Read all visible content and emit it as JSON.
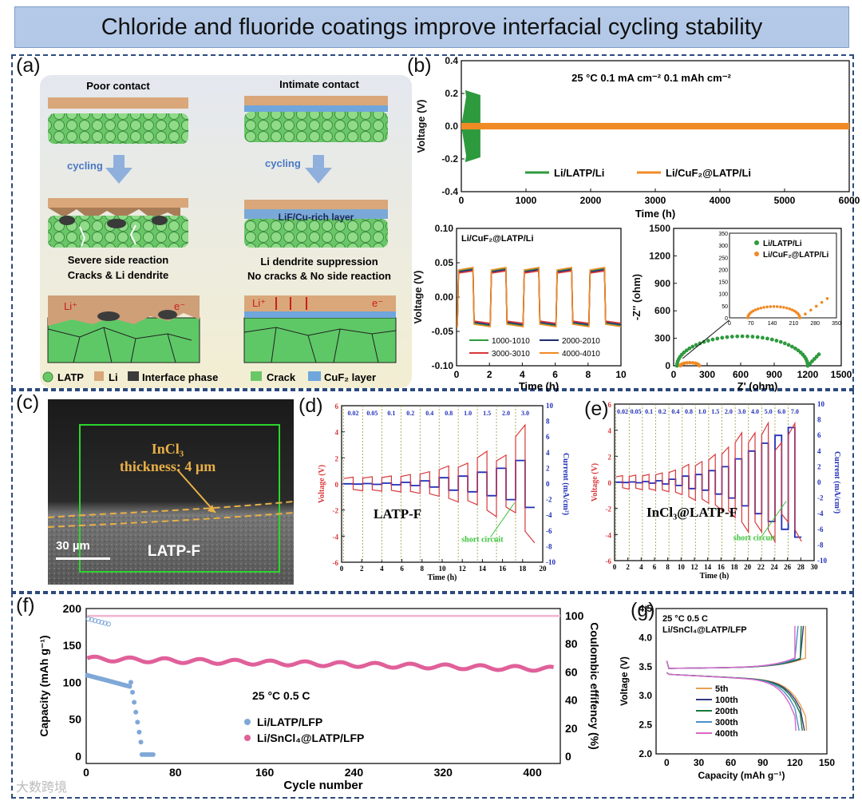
{
  "title": "Chloride and fluoride coatings improve interfacial cycling stability",
  "labels": {
    "a": "(a)",
    "b": "(b)",
    "c": "(c)",
    "d": "(d)",
    "e": "(e)",
    "f": "(f)",
    "g": "(g)"
  },
  "panel_a": {
    "poor": "Poor contact",
    "intimate": "Intimate contact",
    "cycling": "cycling",
    "lif_layer": "LiF/Cu-rich layer",
    "left_caption1": "Severe side reaction",
    "left_caption2": "Cracks & Li dendrite",
    "right_caption1": "Li dendrite suppression",
    "right_caption2": "No cracks & No side reaction",
    "li_plus": "Li⁺",
    "e_minus": "e⁻",
    "legend": [
      "LATP",
      "Li",
      "Interface phase",
      "Crack",
      "CuF₂ layer"
    ]
  },
  "panel_c": {
    "coating": "InCl₃",
    "thickness": "thickness:  4 µm",
    "scale": "30 µm",
    "sample": "LATP-F"
  },
  "colors": {
    "green": "#2e9a3e",
    "orange": "#f08a24",
    "red": "#d9383a",
    "blue": "#1f2fb8",
    "pink": "#e0609a",
    "lightblue": "#7fa8d8",
    "pinkfade": "#f2b7d2"
  },
  "chart_data": [
    {
      "id": "b-top",
      "type": "line",
      "title": "25 °C 0.1 mA cm⁻² 0.1 mAh cm⁻²",
      "xlabel": "Time (h)",
      "ylabel": "Voltage (V)",
      "xlim": [
        0,
        6100
      ],
      "ylim": [
        -0.4,
        0.4
      ],
      "xticks": [
        "0",
        "1000",
        "2000",
        "3000",
        "4000",
        "5000",
        "6000"
      ],
      "yticks": [
        "-0.4",
        "-0.2",
        "0.0",
        "0.2",
        "0.4"
      ],
      "series": [
        {
          "name": "Li/LATP/Li",
          "x_end": 300,
          "amplitude": 0.22
        },
        {
          "name": "Li/CuF₂@LATP/Li",
          "x_end": 6100,
          "amplitude": 0.02
        }
      ]
    },
    {
      "id": "b-bl",
      "type": "line",
      "title": "Li/CuF₂@LATP/Li",
      "xlabel": "Time (h)",
      "ylabel": "Voltage (V)",
      "xlim": [
        0,
        10
      ],
      "ylim": [
        -0.1,
        0.1
      ],
      "xticks": [
        "0",
        "2",
        "4",
        "6",
        "8",
        "10"
      ],
      "yticks": [
        "-0.10",
        "-0.05",
        "0.00",
        "0.05",
        "0.10"
      ],
      "series": [
        {
          "name": "1000-1010",
          "amplitude": 0.042
        },
        {
          "name": "2000-2010",
          "amplitude": 0.04
        },
        {
          "name": "3000-3010",
          "amplitude": 0.038
        },
        {
          "name": "4000-4010",
          "amplitude": 0.043
        }
      ]
    },
    {
      "id": "b-br",
      "type": "scatter",
      "xlabel": "Z' (ohm)",
      "ylabel": "-Z'' (ohm)",
      "xlim": [
        0,
        1500
      ],
      "ylim": [
        0,
        1500
      ],
      "xticks": [
        "0",
        "300",
        "600",
        "900",
        "1200",
        "1500"
      ],
      "yticks": [
        "0",
        "300",
        "600",
        "900",
        "1200",
        "1500"
      ],
      "inset_xticks": [
        "0",
        "70",
        "140",
        "210",
        "280",
        "350"
      ],
      "inset_yticks": [
        "0",
        "50",
        "100",
        "150",
        "200",
        "250",
        "300",
        "350"
      ],
      "series": [
        {
          "name": "Li/LATP/Li",
          "semicircle": [
            30,
            1200
          ]
        },
        {
          "name": "Li/CuF₂@LATP/Li",
          "semicircle": [
            60,
            230
          ]
        }
      ]
    },
    {
      "id": "d",
      "type": "line",
      "sample": "LATP-F",
      "xlabel": "Time (h)",
      "ylabel": "Voltage (V)",
      "ylabel2": "Current (mA/cm²)",
      "xlim": [
        0,
        20
      ],
      "ylim": [
        -6,
        6
      ],
      "y2lim": [
        -10,
        10
      ],
      "xticks": [
        "0",
        "2",
        "4",
        "6",
        "8",
        "10",
        "12",
        "14",
        "16",
        "18",
        "20"
      ],
      "yticks": [
        "-6",
        "-4",
        "-2",
        "0",
        "2",
        "4",
        "6"
      ],
      "y2ticks": [
        "-10",
        "-8",
        "-6",
        "-4",
        "-2",
        "0",
        "2",
        "4",
        "6",
        "8",
        "10"
      ],
      "current_steps": [
        "0.02",
        "0.05",
        "0.1",
        "0.2",
        "0.4",
        "0.8",
        "1.0",
        "1.5",
        "2.0",
        "3.0"
      ],
      "annotation": "short circuit"
    },
    {
      "id": "e",
      "type": "line",
      "sample": "InCl₃@LATP-F",
      "xlabel": "Time (h)",
      "ylabel": "Voltage (V)",
      "ylabel2": "Current (mA/cm²)",
      "xlim": [
        0,
        30
      ],
      "ylim": [
        -6,
        6
      ],
      "y2lim": [
        -10,
        10
      ],
      "xticks": [
        "0",
        "2",
        "4",
        "6",
        "8",
        "10",
        "12",
        "14",
        "16",
        "18",
        "20",
        "22",
        "24",
        "26",
        "28",
        "30"
      ],
      "yticks": [
        "-6",
        "-4",
        "-2",
        "0",
        "2",
        "4",
        "6"
      ],
      "y2ticks": [
        "-10",
        "-8",
        "-6",
        "-4",
        "-2",
        "0",
        "2",
        "4",
        "6",
        "8",
        "10"
      ],
      "current_steps": [
        "0.02",
        "0.05",
        "0.1",
        "0.2",
        "0.4",
        "0.8",
        "1.0",
        "1.5",
        "2.0",
        "3.0",
        "4.0",
        "5.0",
        "6.0",
        "7.0"
      ],
      "annotation": "short circuit"
    },
    {
      "id": "f",
      "type": "scatter",
      "title": "25 °C 0.5 C",
      "xlabel": "Cycle number",
      "ylabel": "Capacity (mAh g⁻¹)",
      "ylabel2": "Coulombic effifency (%)",
      "xlim": [
        0,
        425
      ],
      "ylim": [
        -10,
        200
      ],
      "y2lim": [
        -5,
        105
      ],
      "xticks": [
        "0",
        "80",
        "160",
        "240",
        "320",
        "400"
      ],
      "yticks": [
        "0",
        "50",
        "100",
        "150",
        "200"
      ],
      "y2ticks": [
        "0",
        "20",
        "40",
        "60",
        "80",
        "100"
      ],
      "series": [
        {
          "name": "Li/LATP/LFP",
          "capacity_start": 110,
          "cycles_to_fail": 50
        },
        {
          "name": "Li/SnCl₄@LATP/LFP",
          "capacity_start": 132,
          "capacity_end": 118
        }
      ]
    },
    {
      "id": "g",
      "type": "line",
      "title": "25 °C 0.5 C",
      "subtitle": "Li/SnCl₄@LATP/LFP",
      "xlabel": "Capacity (mAh g⁻¹)",
      "ylabel": "Voltage (V)",
      "xlim": [
        -10,
        150
      ],
      "ylim": [
        2.0,
        4.5
      ],
      "xticks": [
        "0",
        "30",
        "60",
        "90",
        "120",
        "150"
      ],
      "yticks": [
        "2.0",
        "2.5",
        "3.0",
        "3.5",
        "4.0",
        "4.5"
      ],
      "series": [
        {
          "name": "5th",
          "cap": 130,
          "color": "#e8a050"
        },
        {
          "name": "100th",
          "cap": 128,
          "color": "#333a80"
        },
        {
          "name": "200th",
          "cap": 126,
          "color": "#1a7a3e"
        },
        {
          "name": "300th",
          "cap": 123,
          "color": "#4a90c8"
        },
        {
          "name": "400th",
          "cap": 120,
          "color": "#d868c8"
        }
      ]
    }
  ],
  "watermark": "大数跨境"
}
